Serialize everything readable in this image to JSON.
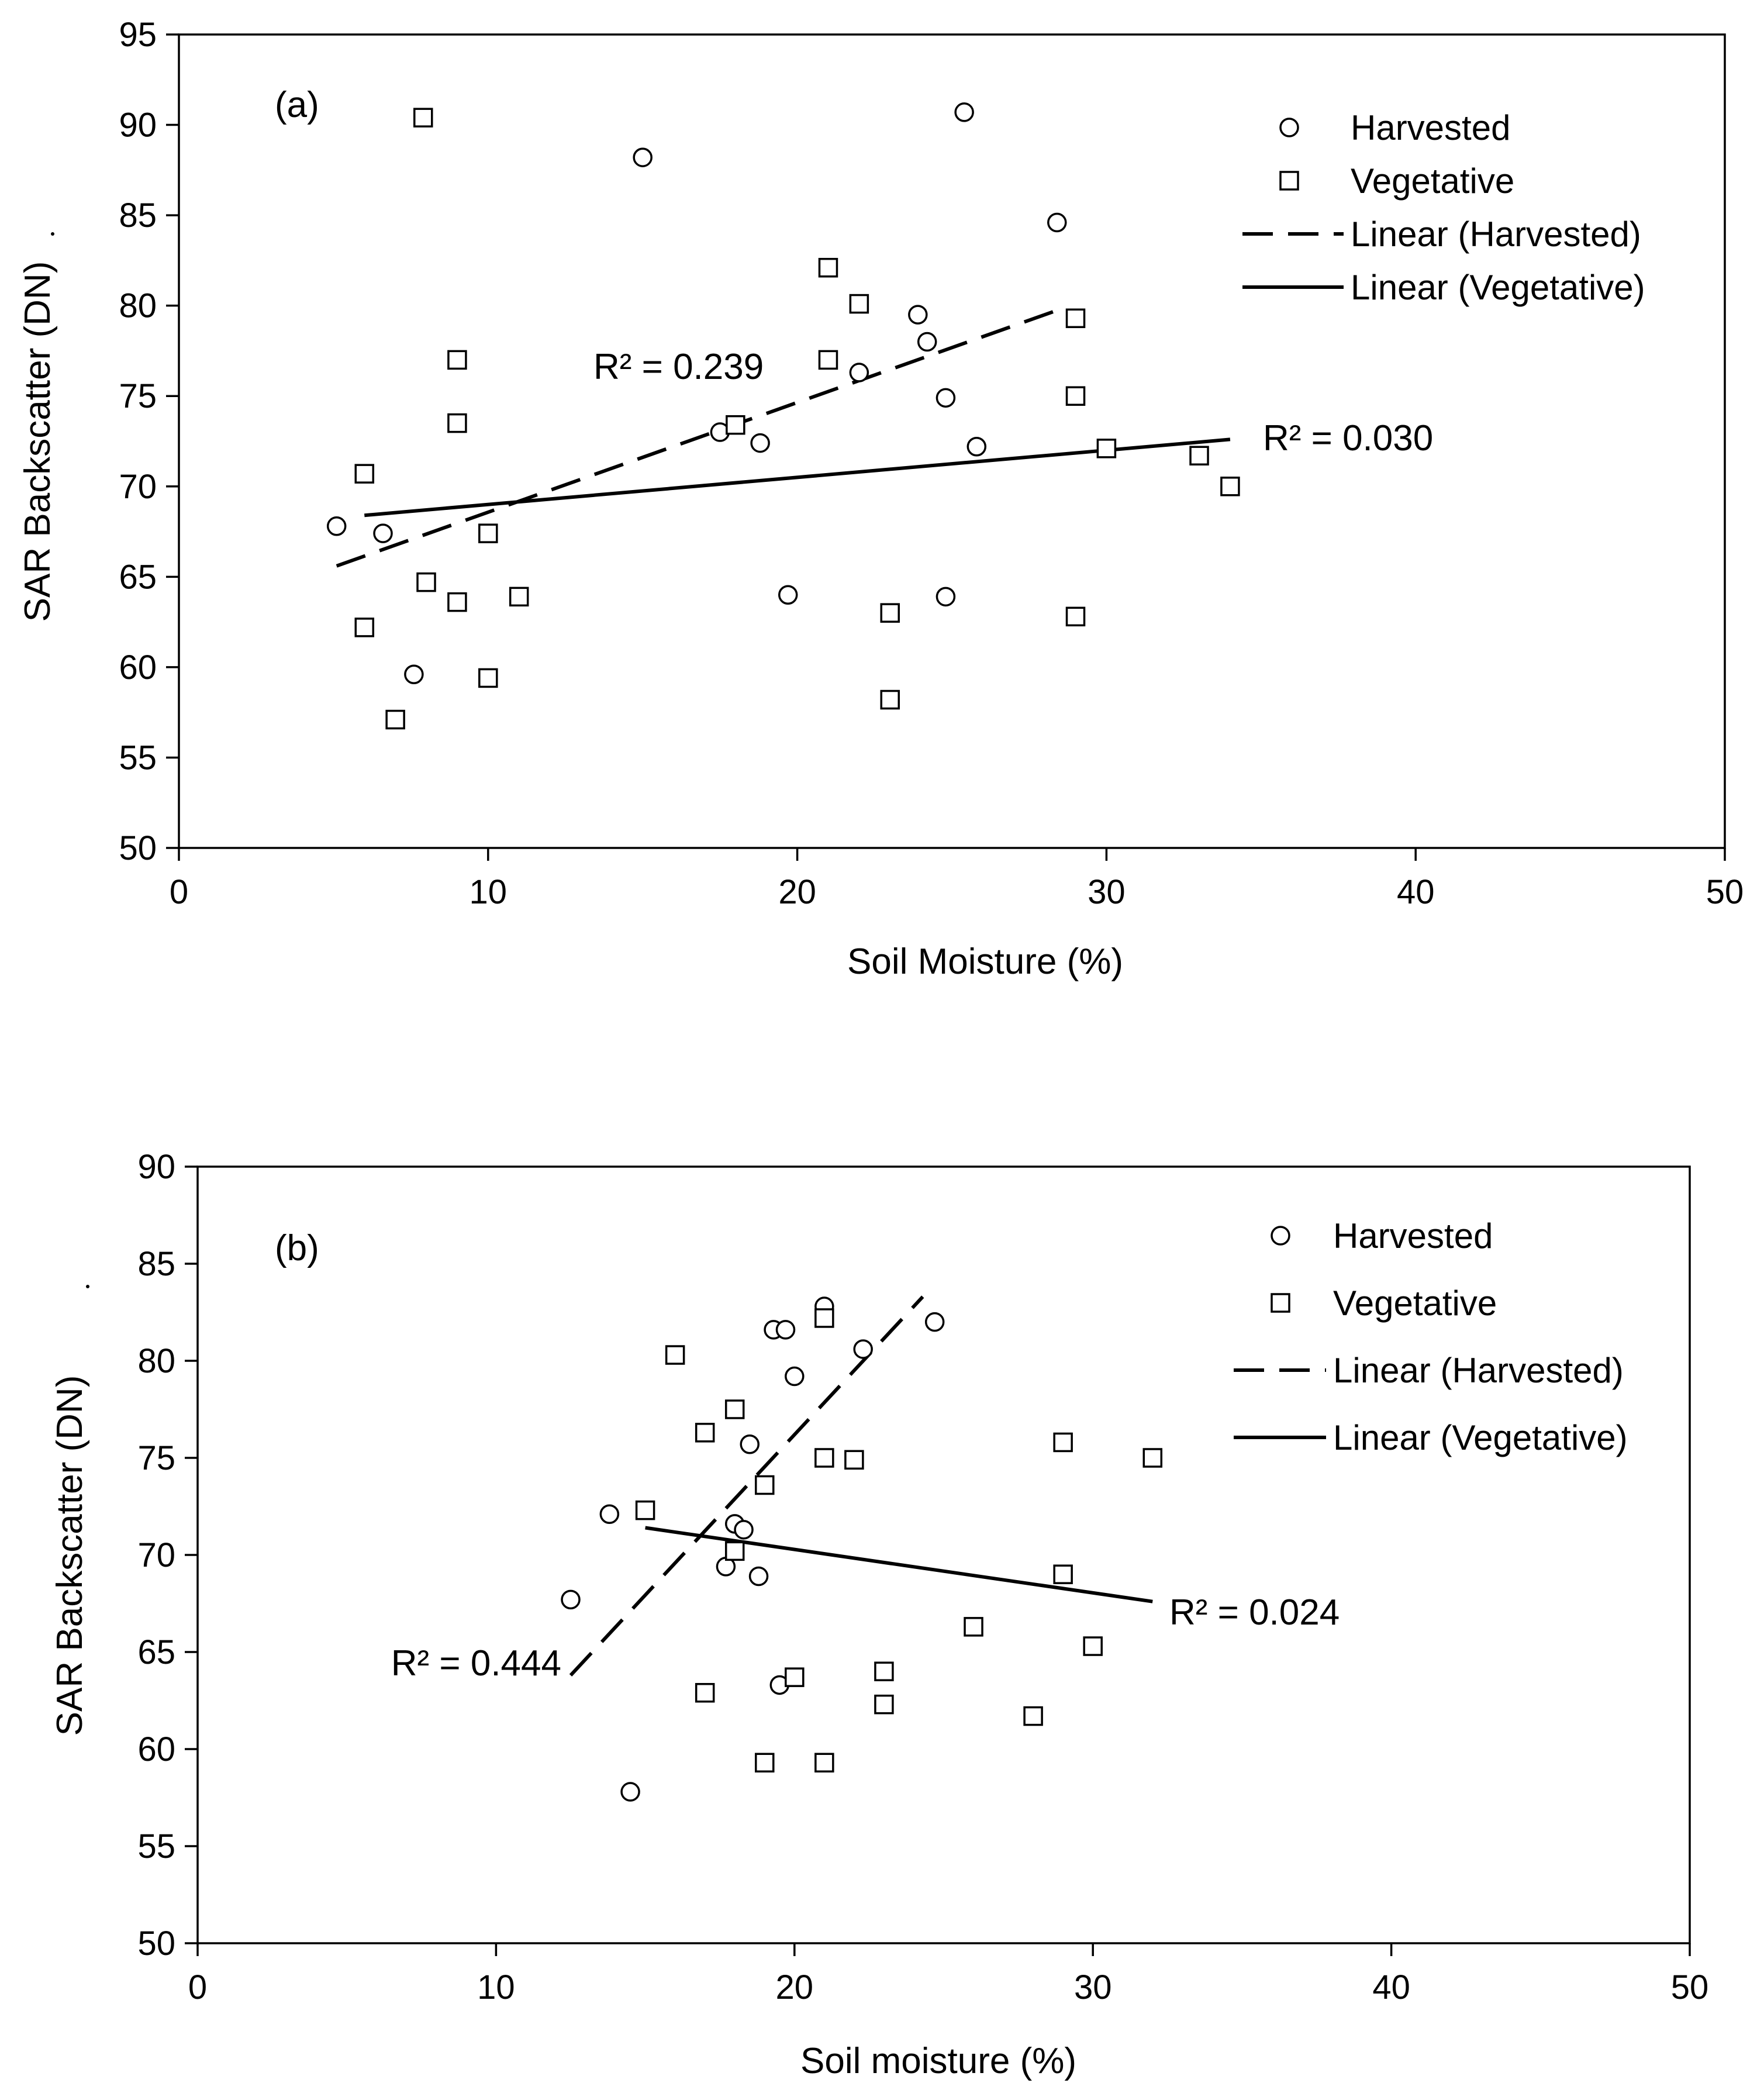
{
  "chart_data": [
    {
      "type": "scatter",
      "panel_label": "(a)",
      "xlabel": "Soil Moisture (%)",
      "ylabel": "SAR Backscatter (DN)",
      "xlim": [
        0,
        50
      ],
      "ylim": [
        50,
        95
      ],
      "xticks": [
        0,
        10,
        20,
        30,
        40,
        50
      ],
      "yticks": [
        50,
        55,
        60,
        65,
        70,
        75,
        80,
        85,
        90,
        95
      ],
      "legend_position": "top-right",
      "legend": [
        "Harvested",
        "Vegetative",
        "Linear (Harvested)",
        "Linear (Vegetative)"
      ],
      "series": [
        {
          "name": "Harvested",
          "marker": "circle",
          "points": [
            [
              5.1,
              67.8
            ],
            [
              6.6,
              67.4
            ],
            [
              7.6,
              59.6
            ],
            [
              15.0,
              88.2
            ],
            [
              17.5,
              73.0
            ],
            [
              18.8,
              72.4
            ],
            [
              19.7,
              64.0
            ],
            [
              22.0,
              76.3
            ],
            [
              23.9,
              79.5
            ],
            [
              24.2,
              78.0
            ],
            [
              24.8,
              74.9
            ],
            [
              24.8,
              63.9
            ],
            [
              25.4,
              90.7
            ],
            [
              25.8,
              72.2
            ],
            [
              28.4,
              84.6
            ]
          ]
        },
        {
          "name": "Vegetative",
          "marker": "square",
          "points": [
            [
              6.0,
              70.7
            ],
            [
              6.0,
              62.2
            ],
            [
              7.0,
              57.1
            ],
            [
              7.9,
              90.4
            ],
            [
              8.0,
              64.7
            ],
            [
              9.0,
              77.0
            ],
            [
              9.0,
              73.5
            ],
            [
              9.0,
              63.6
            ],
            [
              10.0,
              67.4
            ],
            [
              10.0,
              59.4
            ],
            [
              11.0,
              63.9
            ],
            [
              18.0,
              73.4
            ],
            [
              21.0,
              82.1
            ],
            [
              21.0,
              77.0
            ],
            [
              22.0,
              80.1
            ],
            [
              23.0,
              63.0
            ],
            [
              23.0,
              58.2
            ],
            [
              29.0,
              79.3
            ],
            [
              29.0,
              75.0
            ],
            [
              29.0,
              62.8
            ],
            [
              30.0,
              72.1
            ],
            [
              33.0,
              71.7
            ],
            [
              34.0,
              70.0
            ]
          ]
        }
      ],
      "trendlines": [
        {
          "name": "Linear (Harvested)",
          "style": "dashed",
          "x": [
            5.1,
            28.5
          ],
          "y": [
            65.6,
            79.8
          ],
          "r2_label": "R² = 0.239"
        },
        {
          "name": "Linear (Vegetative)",
          "style": "solid",
          "x": [
            6.0,
            34.0
          ],
          "y": [
            68.4,
            72.6
          ],
          "r2_label": "R² = 0.030"
        }
      ]
    },
    {
      "type": "scatter",
      "panel_label": "(b)",
      "xlabel": "Soil moisture (%)",
      "ylabel": "SAR Backscatter (DN)",
      "xlim": [
        0,
        50
      ],
      "ylim": [
        50,
        90
      ],
      "xticks": [
        0,
        10,
        20,
        30,
        40,
        50
      ],
      "yticks": [
        50,
        55,
        60,
        65,
        70,
        75,
        80,
        85,
        90
      ],
      "legend_position": "top-right",
      "legend": [
        "Harvested",
        "Vegetative",
        "Linear (Harvested)",
        "Linear (Vegetative)"
      ],
      "series": [
        {
          "name": "Harvested",
          "marker": "circle",
          "points": [
            [
              12.5,
              67.7
            ],
            [
              13.8,
              72.1
            ],
            [
              14.5,
              57.8
            ],
            [
              17.7,
              69.4
            ],
            [
              18.0,
              71.6
            ],
            [
              18.3,
              71.3
            ],
            [
              18.5,
              75.7
            ],
            [
              18.8,
              68.9
            ],
            [
              19.3,
              81.6
            ],
            [
              19.5,
              63.3
            ],
            [
              19.7,
              81.6
            ],
            [
              20.0,
              79.2
            ],
            [
              21.0,
              82.8
            ],
            [
              22.3,
              80.6
            ],
            [
              24.7,
              82.0
            ]
          ]
        },
        {
          "name": "Vegetative",
          "marker": "square",
          "points": [
            [
              15.0,
              72.3
            ],
            [
              16.0,
              80.3
            ],
            [
              17.0,
              76.3
            ],
            [
              17.0,
              62.9
            ],
            [
              18.0,
              77.5
            ],
            [
              18.0,
              70.2
            ],
            [
              19.0,
              73.6
            ],
            [
              19.0,
              59.3
            ],
            [
              20.0,
              63.7
            ],
            [
              21.0,
              82.2
            ],
            [
              21.0,
              75.0
            ],
            [
              21.0,
              59.3
            ],
            [
              22.0,
              74.9
            ],
            [
              23.0,
              64.0
            ],
            [
              23.0,
              62.3
            ],
            [
              26.0,
              66.3
            ],
            [
              28.0,
              61.7
            ],
            [
              29.0,
              75.8
            ],
            [
              29.0,
              69.0
            ],
            [
              30.0,
              65.3
            ],
            [
              32.0,
              75.0
            ]
          ]
        }
      ],
      "trendlines": [
        {
          "name": "Linear (Harvested)",
          "style": "dashed",
          "x": [
            12.5,
            24.3
          ],
          "y": [
            63.8,
            83.3
          ],
          "r2_label": "R² = 0.444"
        },
        {
          "name": "Linear (Vegetative)",
          "style": "solid",
          "x": [
            15.0,
            32.0
          ],
          "y": [
            71.4,
            67.6
          ],
          "r2_label": "R² = 0.024"
        }
      ]
    }
  ]
}
